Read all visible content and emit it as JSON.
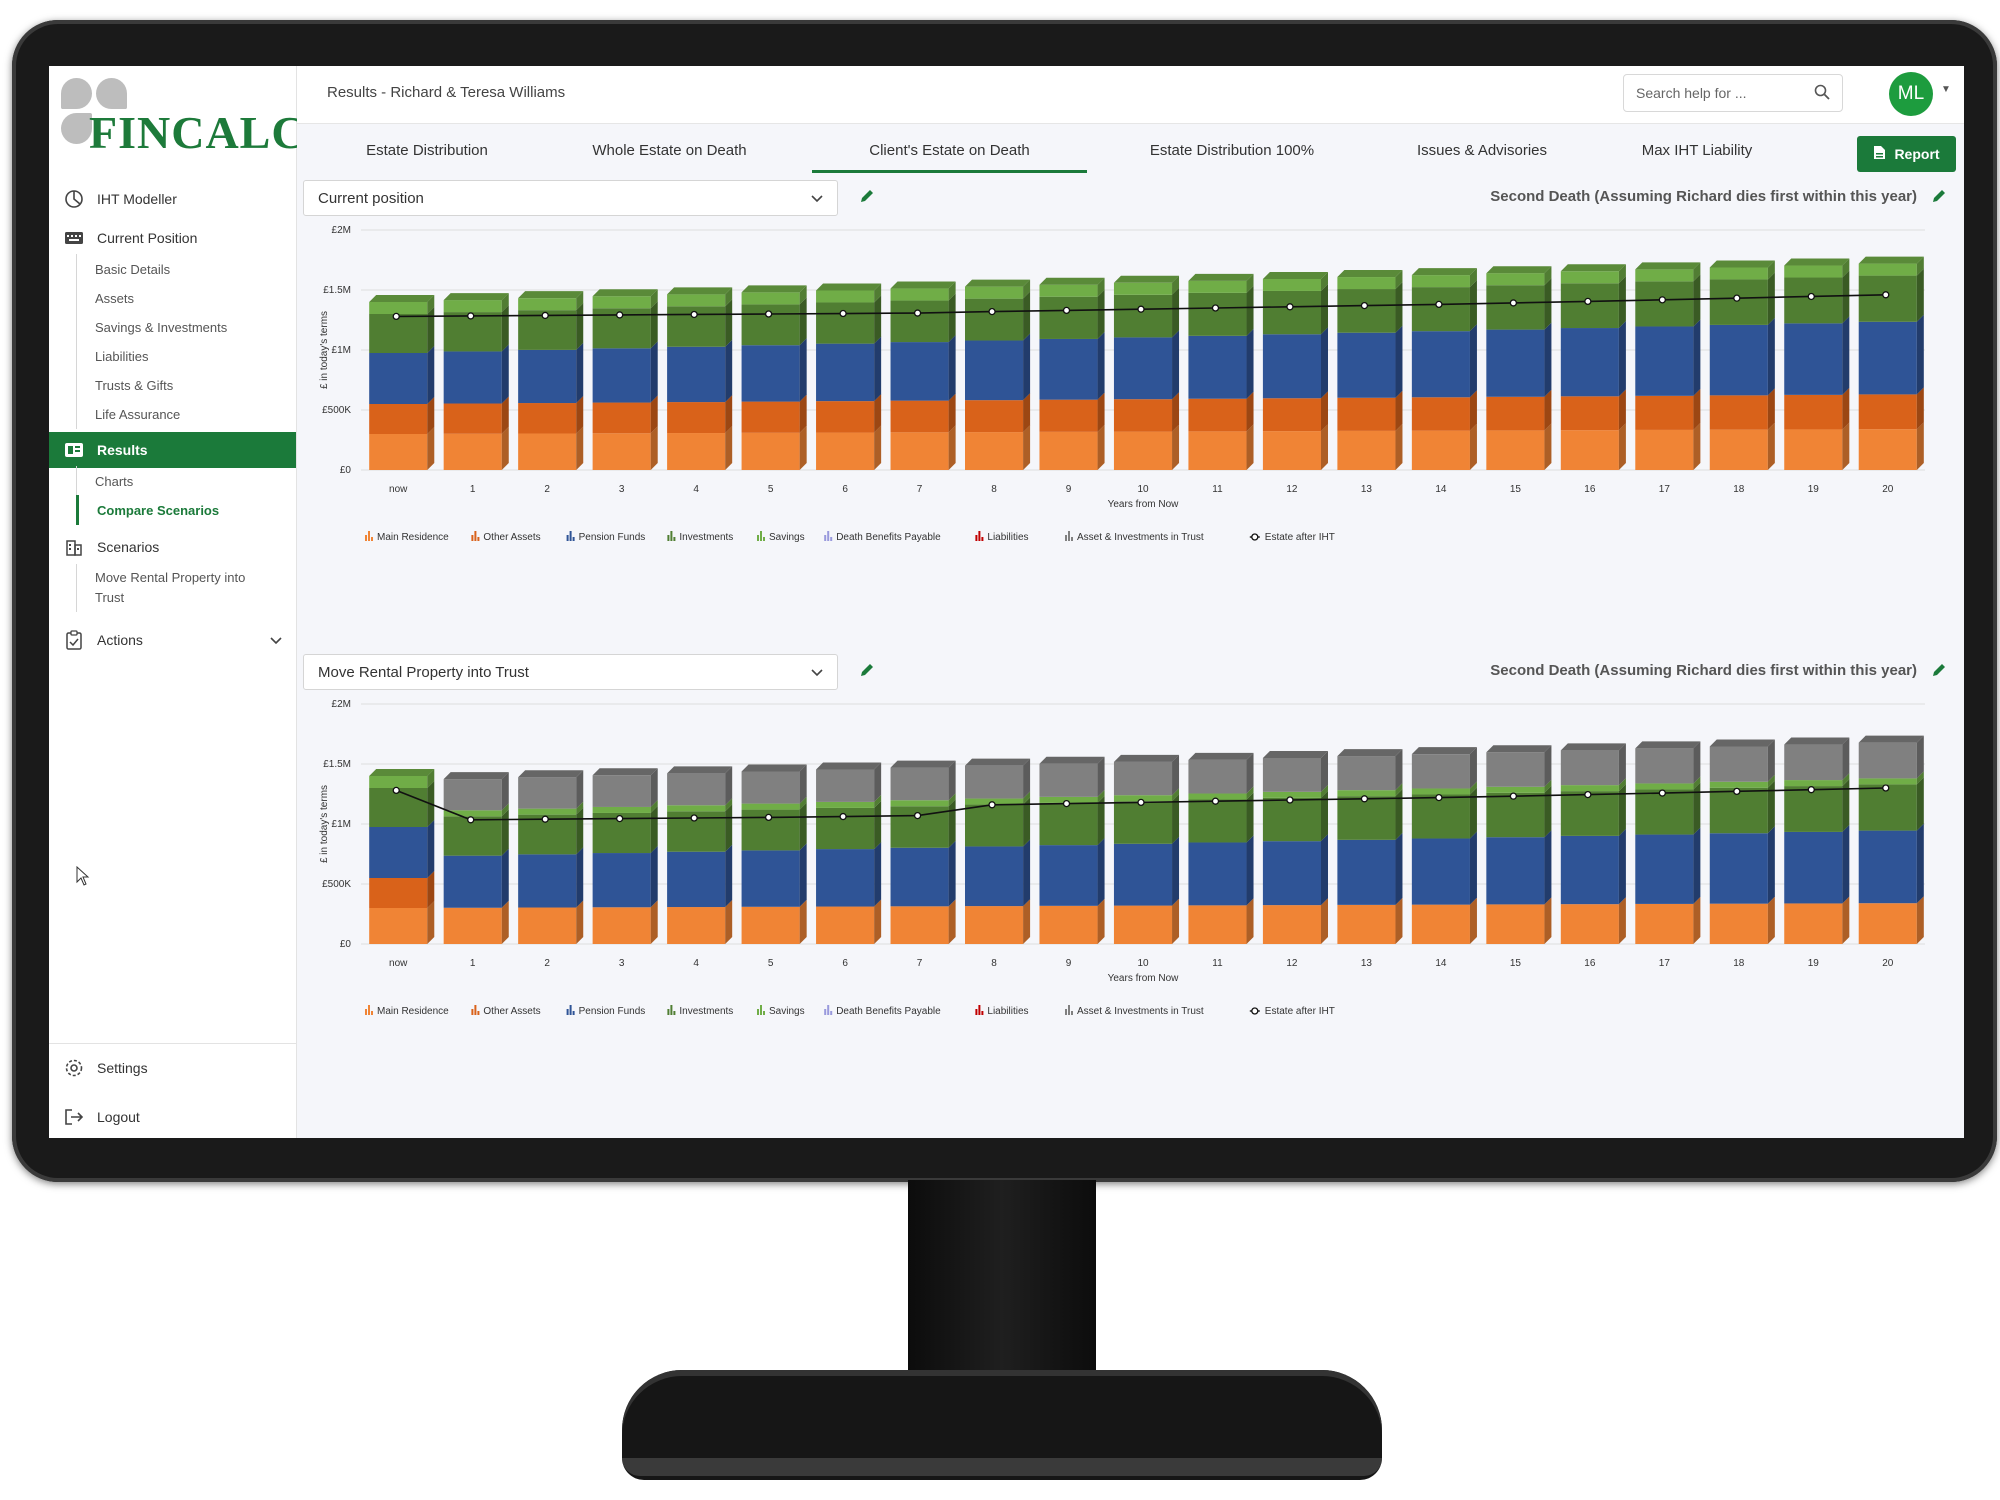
{
  "app": {
    "brand": "FinCalc",
    "brand_display": "FINCALC"
  },
  "sidebar": {
    "top_items": [
      {
        "label": "IHT Modeller",
        "icon": "pie-chart-icon"
      },
      {
        "label": "Current Position",
        "icon": "keyboard-icon"
      }
    ],
    "current_position_sub": [
      "Basic Details",
      "Assets",
      "Savings & Investments",
      "Liabilities",
      "Trusts & Gifts",
      "Life Assurance"
    ],
    "results": {
      "label": "Results",
      "icon": "results-icon"
    },
    "results_sub": [
      "Charts",
      "Compare Scenarios"
    ],
    "scenarios": {
      "label": "Scenarios",
      "icon": "building-icon"
    },
    "scenarios_sub": [
      "Move Rental Property into Trust"
    ],
    "actions": {
      "label": "Actions",
      "icon": "clipboard-icon"
    },
    "settings": {
      "label": "Settings",
      "icon": "gear-icon"
    },
    "logout": {
      "label": "Logout",
      "icon": "logout-icon"
    }
  },
  "header": {
    "title": "Results - Richard & Teresa Williams",
    "search_placeholder": "Search help for ...",
    "avatar_initials": "ML"
  },
  "tabs": [
    "Estate Distribution",
    "Whole Estate on Death",
    "Client's Estate on Death",
    "Estate Distribution 100%",
    "Issues & Advisories",
    "Max IHT Liability"
  ],
  "active_tab": "Client's Estate on Death",
  "report_button": "Report",
  "colors": {
    "brand": "#1b7a3a",
    "main_residence": "#f08435",
    "other_assets": "#d9621a",
    "pension_funds": "#2f5496",
    "investments": "#507e32",
    "savings": "#70ad47",
    "death_benefits": "#9999dd",
    "liabilities": "#c00000",
    "trust": "#808080"
  },
  "panels": [
    {
      "scenario": "Current position",
      "title": "Second Death (Assuming Richard dies first within this year)"
    },
    {
      "scenario": "Move Rental Property into Trust",
      "title": "Second Death (Assuming Richard dies first within this year)"
    }
  ],
  "chart_data": [
    {
      "type": "bar",
      "stacked": true,
      "title": "",
      "xlabel": "Years from Now",
      "ylabel": "£ in today's terms",
      "ylim": [
        0,
        2000000
      ],
      "yticks": [
        "£0",
        "£500K",
        "£1M",
        "£1.5M",
        "£2M"
      ],
      "categories": [
        "now",
        "1",
        "2",
        "3",
        "4",
        "5",
        "6",
        "7",
        "8",
        "9",
        "10",
        "11",
        "12",
        "13",
        "14",
        "15",
        "16",
        "17",
        "18",
        "19",
        "20"
      ],
      "series": [
        {
          "name": "Main Residence",
          "values": [
            300000,
            302000,
            304000,
            306000,
            308000,
            310000,
            312000,
            314000,
            316000,
            318000,
            320000,
            322000,
            324000,
            326000,
            328000,
            330000,
            332000,
            334000,
            336000,
            338000,
            340000
          ]
        },
        {
          "name": "Other Assets",
          "values": [
            250000,
            252000,
            254000,
            256000,
            258000,
            260000,
            262000,
            264000,
            266000,
            268000,
            270000,
            272000,
            274000,
            276000,
            278000,
            280000,
            282000,
            284000,
            286000,
            288000,
            290000
          ]
        },
        {
          "name": "Pension Funds",
          "values": [
            425000,
            434000,
            443000,
            452000,
            461000,
            470000,
            479000,
            488000,
            497000,
            506000,
            515000,
            524000,
            533000,
            542000,
            551000,
            560000,
            569000,
            578000,
            587000,
            596000,
            605000
          ]
        },
        {
          "name": "Investments",
          "values": [
            325000,
            328000,
            331000,
            334000,
            337000,
            340000,
            343000,
            346000,
            349000,
            352000,
            355000,
            358000,
            361000,
            364000,
            367000,
            370000,
            373000,
            376000,
            379000,
            382000,
            385000
          ]
        },
        {
          "name": "Savings",
          "values": [
            100000,
            100000,
            100000,
            100000,
            100000,
            100000,
            100000,
            100000,
            100000,
            100000,
            100000,
            100000,
            100000,
            100000,
            100000,
            100000,
            100000,
            100000,
            100000,
            100000,
            100000
          ]
        },
        {
          "name": "Death Benefits Payable",
          "values": [
            0,
            0,
            0,
            0,
            0,
            0,
            0,
            0,
            0,
            0,
            0,
            0,
            0,
            0,
            0,
            0,
            0,
            0,
            0,
            0,
            0
          ]
        },
        {
          "name": "Liabilities",
          "values": [
            0,
            0,
            0,
            0,
            0,
            0,
            0,
            0,
            0,
            0,
            0,
            0,
            0,
            0,
            0,
            0,
            0,
            0,
            0,
            0,
            0
          ]
        },
        {
          "name": "Asset & Investments in Trust",
          "values": [
            0,
            0,
            0,
            0,
            0,
            0,
            0,
            0,
            0,
            0,
            0,
            0,
            0,
            0,
            0,
            0,
            0,
            0,
            0,
            0,
            0
          ]
        }
      ],
      "line": {
        "name": "Estate after IHT",
        "values": [
          1280000,
          1284000,
          1288000,
          1292000,
          1296000,
          1300000,
          1304000,
          1308000,
          1320000,
          1330000,
          1340000,
          1350000,
          1360000,
          1370000,
          1380000,
          1392000,
          1405000,
          1418000,
          1432000,
          1446000,
          1460000
        ]
      },
      "legend_position": "bottom-left",
      "grid": true
    },
    {
      "type": "bar",
      "stacked": true,
      "title": "",
      "xlabel": "Years from Now",
      "ylabel": "£ in today's terms",
      "ylim": [
        0,
        2000000
      ],
      "yticks": [
        "£0",
        "£500K",
        "£1M",
        "£1.5M",
        "£2M"
      ],
      "categories": [
        "now",
        "1",
        "2",
        "3",
        "4",
        "5",
        "6",
        "7",
        "8",
        "9",
        "10",
        "11",
        "12",
        "13",
        "14",
        "15",
        "16",
        "17",
        "18",
        "19",
        "20"
      ],
      "series": [
        {
          "name": "Main Residence",
          "values": [
            300000,
            302000,
            304000,
            306000,
            308000,
            310000,
            312000,
            314000,
            316000,
            318000,
            320000,
            322000,
            324000,
            326000,
            328000,
            330000,
            332000,
            334000,
            336000,
            338000,
            340000
          ]
        },
        {
          "name": "Other Assets",
          "values": [
            250000,
            0,
            0,
            0,
            0,
            0,
            0,
            0,
            0,
            0,
            0,
            0,
            0,
            0,
            0,
            0,
            0,
            0,
            0,
            0,
            0
          ]
        },
        {
          "name": "Pension Funds",
          "values": [
            425000,
            434000,
            443000,
            452000,
            461000,
            470000,
            479000,
            488000,
            497000,
            506000,
            515000,
            524000,
            533000,
            542000,
            551000,
            560000,
            569000,
            578000,
            587000,
            596000,
            605000
          ]
        },
        {
          "name": "Investments",
          "values": [
            325000,
            328000,
            331000,
            334000,
            337000,
            340000,
            343000,
            346000,
            349000,
            352000,
            355000,
            358000,
            361000,
            364000,
            367000,
            370000,
            373000,
            376000,
            379000,
            382000,
            385000
          ]
        },
        {
          "name": "Savings",
          "values": [
            100000,
            50000,
            50000,
            50000,
            50000,
            50000,
            50000,
            50000,
            50000,
            50000,
            50000,
            50000,
            50000,
            50000,
            50000,
            50000,
            50000,
            50000,
            50000,
            50000,
            50000
          ]
        },
        {
          "name": "Death Benefits Payable",
          "values": [
            0,
            0,
            0,
            0,
            0,
            0,
            0,
            0,
            0,
            0,
            0,
            0,
            0,
            0,
            0,
            0,
            0,
            0,
            0,
            0,
            0
          ]
        },
        {
          "name": "Liabilities",
          "values": [
            0,
            0,
            0,
            0,
            0,
            0,
            0,
            0,
            0,
            0,
            0,
            0,
            0,
            0,
            0,
            0,
            0,
            0,
            0,
            0,
            0
          ]
        },
        {
          "name": "Asset & Investments in Trust",
          "values": [
            0,
            260000,
            262000,
            264000,
            266000,
            268000,
            270000,
            272000,
            274000,
            276000,
            278000,
            280000,
            282000,
            284000,
            286000,
            288000,
            290000,
            292000,
            294000,
            296000,
            298000
          ]
        }
      ],
      "line": {
        "name": "Estate after IHT",
        "values": [
          1280000,
          1035000,
          1040000,
          1045000,
          1050000,
          1055000,
          1062000,
          1070000,
          1160000,
          1170000,
          1180000,
          1190000,
          1200000,
          1210000,
          1220000,
          1232000,
          1245000,
          1258000,
          1272000,
          1286000,
          1300000
        ]
      },
      "legend_position": "bottom-left",
      "grid": true
    }
  ]
}
